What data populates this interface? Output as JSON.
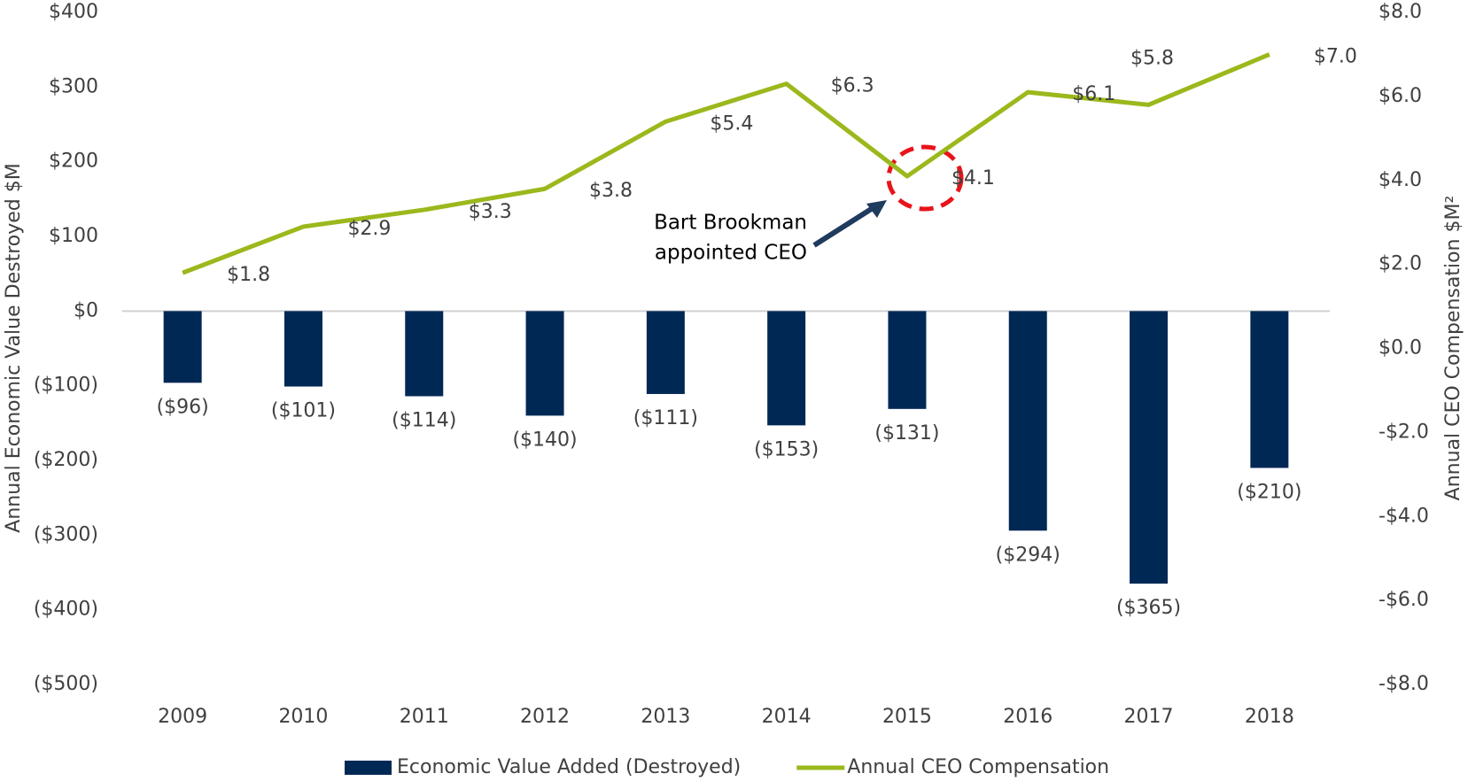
{
  "chart_data": {
    "type": "bar_line",
    "categories": [
      "2009",
      "2010",
      "2011",
      "2012",
      "2013",
      "2014",
      "2015",
      "2016",
      "2017",
      "2018"
    ],
    "series": [
      {
        "name": "Economic Value Added (Destroyed)",
        "type": "bar",
        "color": "#002855",
        "axis": "y",
        "values": [
          -96,
          -101,
          -114,
          -140,
          -111,
          -153,
          -131,
          -294,
          -365,
          -210
        ],
        "value_labels": [
          "($96)",
          "($101)",
          "($114)",
          "($140)",
          "($111)",
          "($153)",
          "($131)",
          "($294)",
          "($365)",
          "($210)"
        ]
      },
      {
        "name": "Annual CEO Compensation",
        "type": "line",
        "color": "#9bb81c",
        "axis": "y2",
        "values": [
          1.8,
          2.9,
          3.3,
          3.8,
          5.4,
          6.3,
          4.1,
          6.1,
          5.8,
          7.0
        ],
        "value_labels": [
          "$1.8",
          "$2.9",
          "$3.3",
          "$3.8",
          "$5.4",
          "$6.3",
          "$4.1",
          "$6.1",
          "$5.8",
          "$7.0"
        ]
      }
    ],
    "ylabel": "Annual Economic Value Destroyed $M",
    "y2label": "Annual CEO Compensation $M²",
    "ylim": [
      -500,
      400
    ],
    "yticks": [
      {
        "value": -500,
        "label": "($500)"
      },
      {
        "value": -400,
        "label": "($400)"
      },
      {
        "value": -300,
        "label": "($300)"
      },
      {
        "value": -200,
        "label": "($200)"
      },
      {
        "value": -100,
        "label": "($100)"
      },
      {
        "value": 0,
        "label": "$0"
      },
      {
        "value": 100,
        "label": "$100"
      },
      {
        "value": 200,
        "label": "$200"
      },
      {
        "value": 300,
        "label": "$300"
      },
      {
        "value": 400,
        "label": "$400"
      }
    ],
    "y2lim": [
      -8,
      8
    ],
    "y2ticks": [
      {
        "value": -8,
        "label": "-$8.0"
      },
      {
        "value": -6,
        "label": "-$6.0"
      },
      {
        "value": -4,
        "label": "-$4.0"
      },
      {
        "value": -2,
        "label": "-$2.0"
      },
      {
        "value": 0,
        "label": "$0.0"
      },
      {
        "value": 2,
        "label": "$2.0"
      },
      {
        "value": 4,
        "label": "$4.0"
      },
      {
        "value": 6,
        "label": "$6.0"
      },
      {
        "value": 8,
        "label": "$8.0"
      }
    ],
    "annotation": [
      "Bart Brookman",
      "appointed CEO"
    ],
    "legend": "bottom"
  }
}
